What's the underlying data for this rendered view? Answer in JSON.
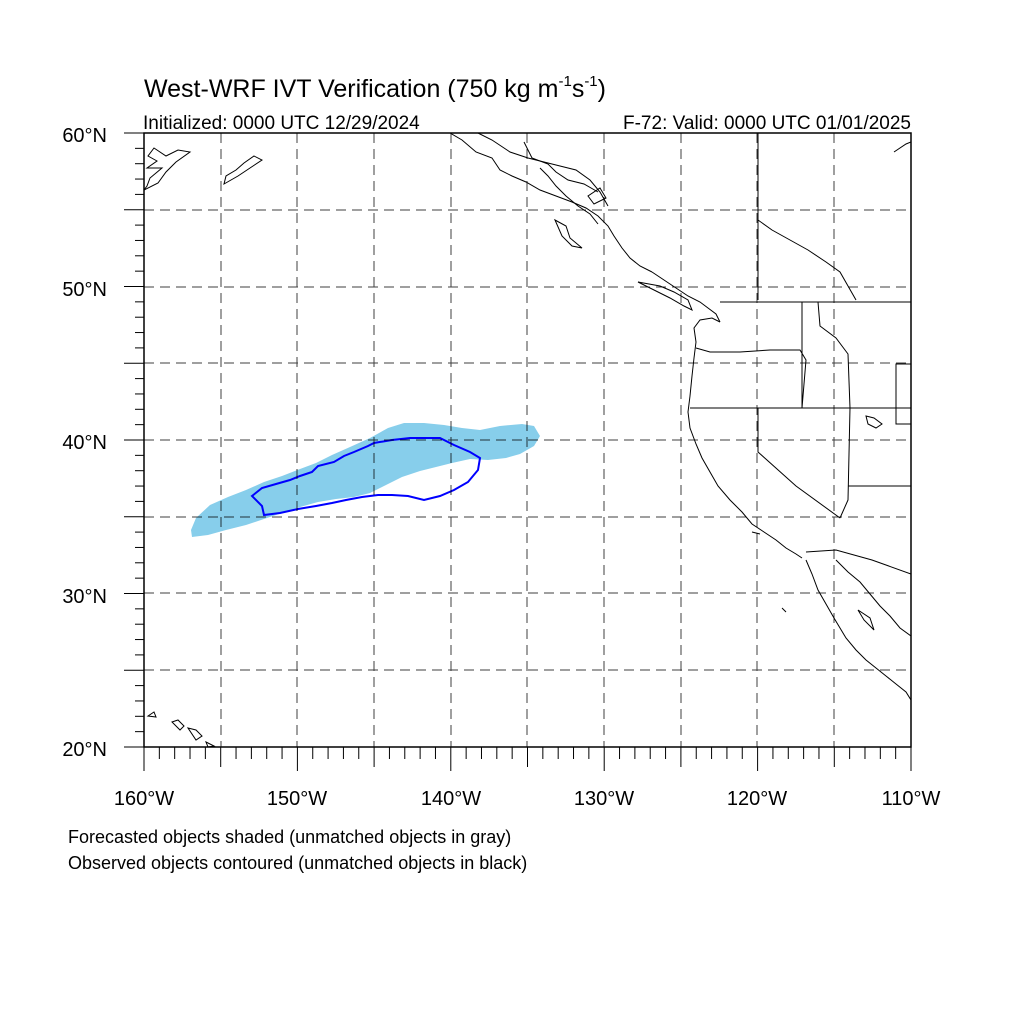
{
  "title": {
    "main": "West-WRF IVT Verification (750 kg m",
    "sup1": "-1",
    "mid": "s",
    "sup2": "-1",
    "tail": ")"
  },
  "subtitle_left": "Initialized: 0000 UTC 12/29/2024",
  "subtitle_right": "F-72: Valid: 0000 UTC 01/01/2025",
  "map": {
    "lon_range": [
      -160,
      -110
    ],
    "lat_range": [
      20,
      60
    ],
    "lon_labels": [
      "160°W",
      "150°W",
      "140°W",
      "130°W",
      "120°W",
      "110°W"
    ],
    "lat_labels": [
      "20°N",
      "30°N",
      "40°N",
      "50°N",
      "60°N"
    ],
    "grid": "dashed, every 5°",
    "forecast_object_color": "#87ceeb",
    "observed_object_color": "#0000ff",
    "coast_color": "#000000"
  },
  "legend": {
    "line1": "Forecasted objects shaded (unmatched objects in gray)",
    "line2": "Observed objects contoured (unmatched objects in black)"
  }
}
